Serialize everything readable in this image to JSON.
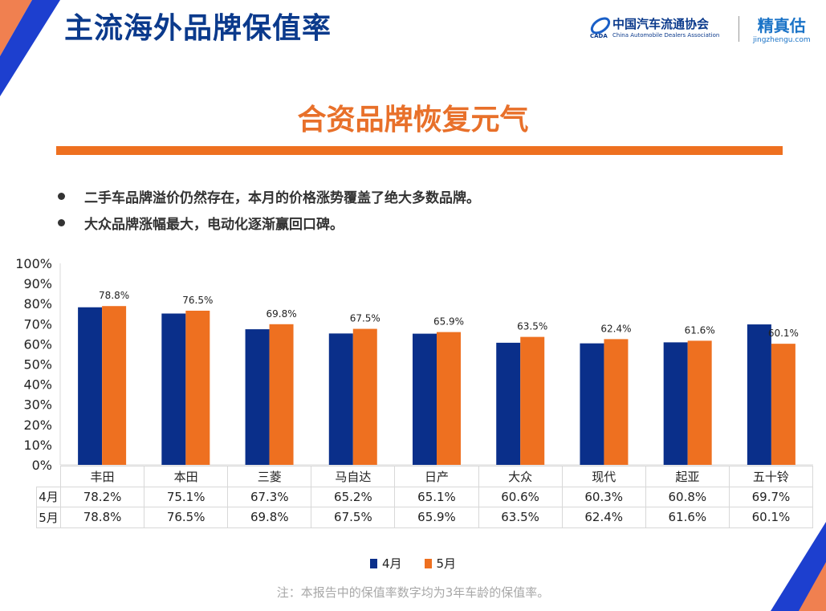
{
  "header": {
    "title": "主流海外品牌保值率",
    "logo_cada_cn": "中国汽车流通协会",
    "logo_cada_en": "China Automobile Dealers Association",
    "logo_jzg_cn": "精真估",
    "logo_jzg_en": "jingzhengu.com"
  },
  "subtitle": "合资品牌恢复元气",
  "bullets": [
    "二手车品牌溢价仍然存在，本月的价格涨势覆盖了绝大多数品牌。",
    "大众品牌涨幅最大，电动化逐渐赢回口碑。"
  ],
  "note": "注：本报告中的保值率数字均为3年车龄的保值率。",
  "colors": {
    "april": "#0a2f8a",
    "may": "#ee7020",
    "title": "#0b3a8c",
    "accent": "#ee7020"
  },
  "chart_data": {
    "type": "bar",
    "categories": [
      "丰田",
      "本田",
      "三菱",
      "马自达",
      "日产",
      "大众",
      "现代",
      "起亚",
      "五十铃"
    ],
    "series": [
      {
        "name": "4月",
        "values": [
          78.2,
          75.1,
          67.3,
          65.2,
          65.1,
          60.6,
          60.3,
          60.8,
          69.7
        ],
        "labels": [
          "78.2%",
          "75.1%",
          "67.3%",
          "65.2%",
          "65.1%",
          "60.6%",
          "60.3%",
          "60.8%",
          "69.7%"
        ]
      },
      {
        "name": "5月",
        "values": [
          78.8,
          76.5,
          69.8,
          67.5,
          65.9,
          63.5,
          62.4,
          61.6,
          60.1
        ],
        "labels": [
          "78.8%",
          "76.5%",
          "69.8%",
          "67.5%",
          "65.9%",
          "63.5%",
          "62.4%",
          "61.6%",
          "60.1%"
        ]
      }
    ],
    "yticks": [
      "0%",
      "10%",
      "20%",
      "30%",
      "40%",
      "50%",
      "60%",
      "70%",
      "80%",
      "90%",
      "100%"
    ],
    "ylim": [
      0,
      100
    ],
    "data_labels_series": "5月",
    "legend_position": "bottom",
    "grid": false,
    "data_table": true
  }
}
